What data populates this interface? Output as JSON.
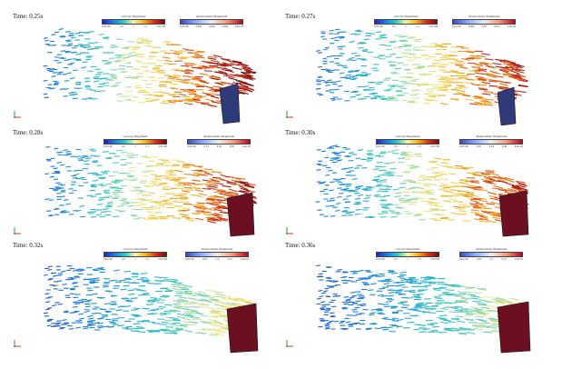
{
  "legend_titles": {
    "velocity": "velocity Magnitude",
    "displacement": "displacement Magnitude"
  },
  "panels": [
    {
      "time": "Time: 0.25s",
      "velocity_ticks": [
        "0.0e+00",
        "0.5",
        "1",
        "1.5",
        "2.0e+00"
      ],
      "displacement_ticks": [
        "0.0e+00",
        "0.002",
        "0.004",
        "0.006",
        "8.0e-03"
      ]
    },
    {
      "time": "Time: 0.27s",
      "velocity_ticks": [
        "0.0e+00",
        "0.5",
        "1",
        "1.5",
        "2.0e+00"
      ],
      "displacement_ticks": [
        "0.0e+00",
        "0.005",
        "0.01",
        "0.015",
        "2.0e-02"
      ]
    },
    {
      "time": "Time: 0.28s",
      "velocity_ticks": [
        "0.0e+00",
        "0.5",
        "1",
        "1.5",
        "2.0e+00"
      ],
      "displacement_ticks": [
        "0.0e+00",
        "0.01",
        "0.02",
        "0.03",
        "4.0e-02"
      ]
    },
    {
      "time": "Time: 0.30s",
      "velocity_ticks": [
        "0.0e+00",
        "0.5",
        "1",
        "1.5",
        "2.0e+00"
      ],
      "displacement_ticks": [
        "0.0e+00",
        "0.02",
        "0.04",
        "0.06",
        "8.0e-02"
      ]
    },
    {
      "time": "Time: 0.32s",
      "velocity_ticks": [
        "0.0e+00",
        "0.5",
        "1",
        "1.5",
        "2.0e+00"
      ],
      "displacement_ticks": [
        "0.0e+00",
        "0.05",
        "0.1",
        "0.15",
        "2.0e-01"
      ]
    },
    {
      "time": "Time: 0.36s",
      "velocity_ticks": [
        "0.0e+00",
        "0.5",
        "1",
        "1.5",
        "2.0e+00"
      ],
      "displacement_ticks": [
        "0.0e+00",
        "0.05",
        "0.1",
        "0.15",
        "2.0e-01"
      ]
    }
  ]
}
